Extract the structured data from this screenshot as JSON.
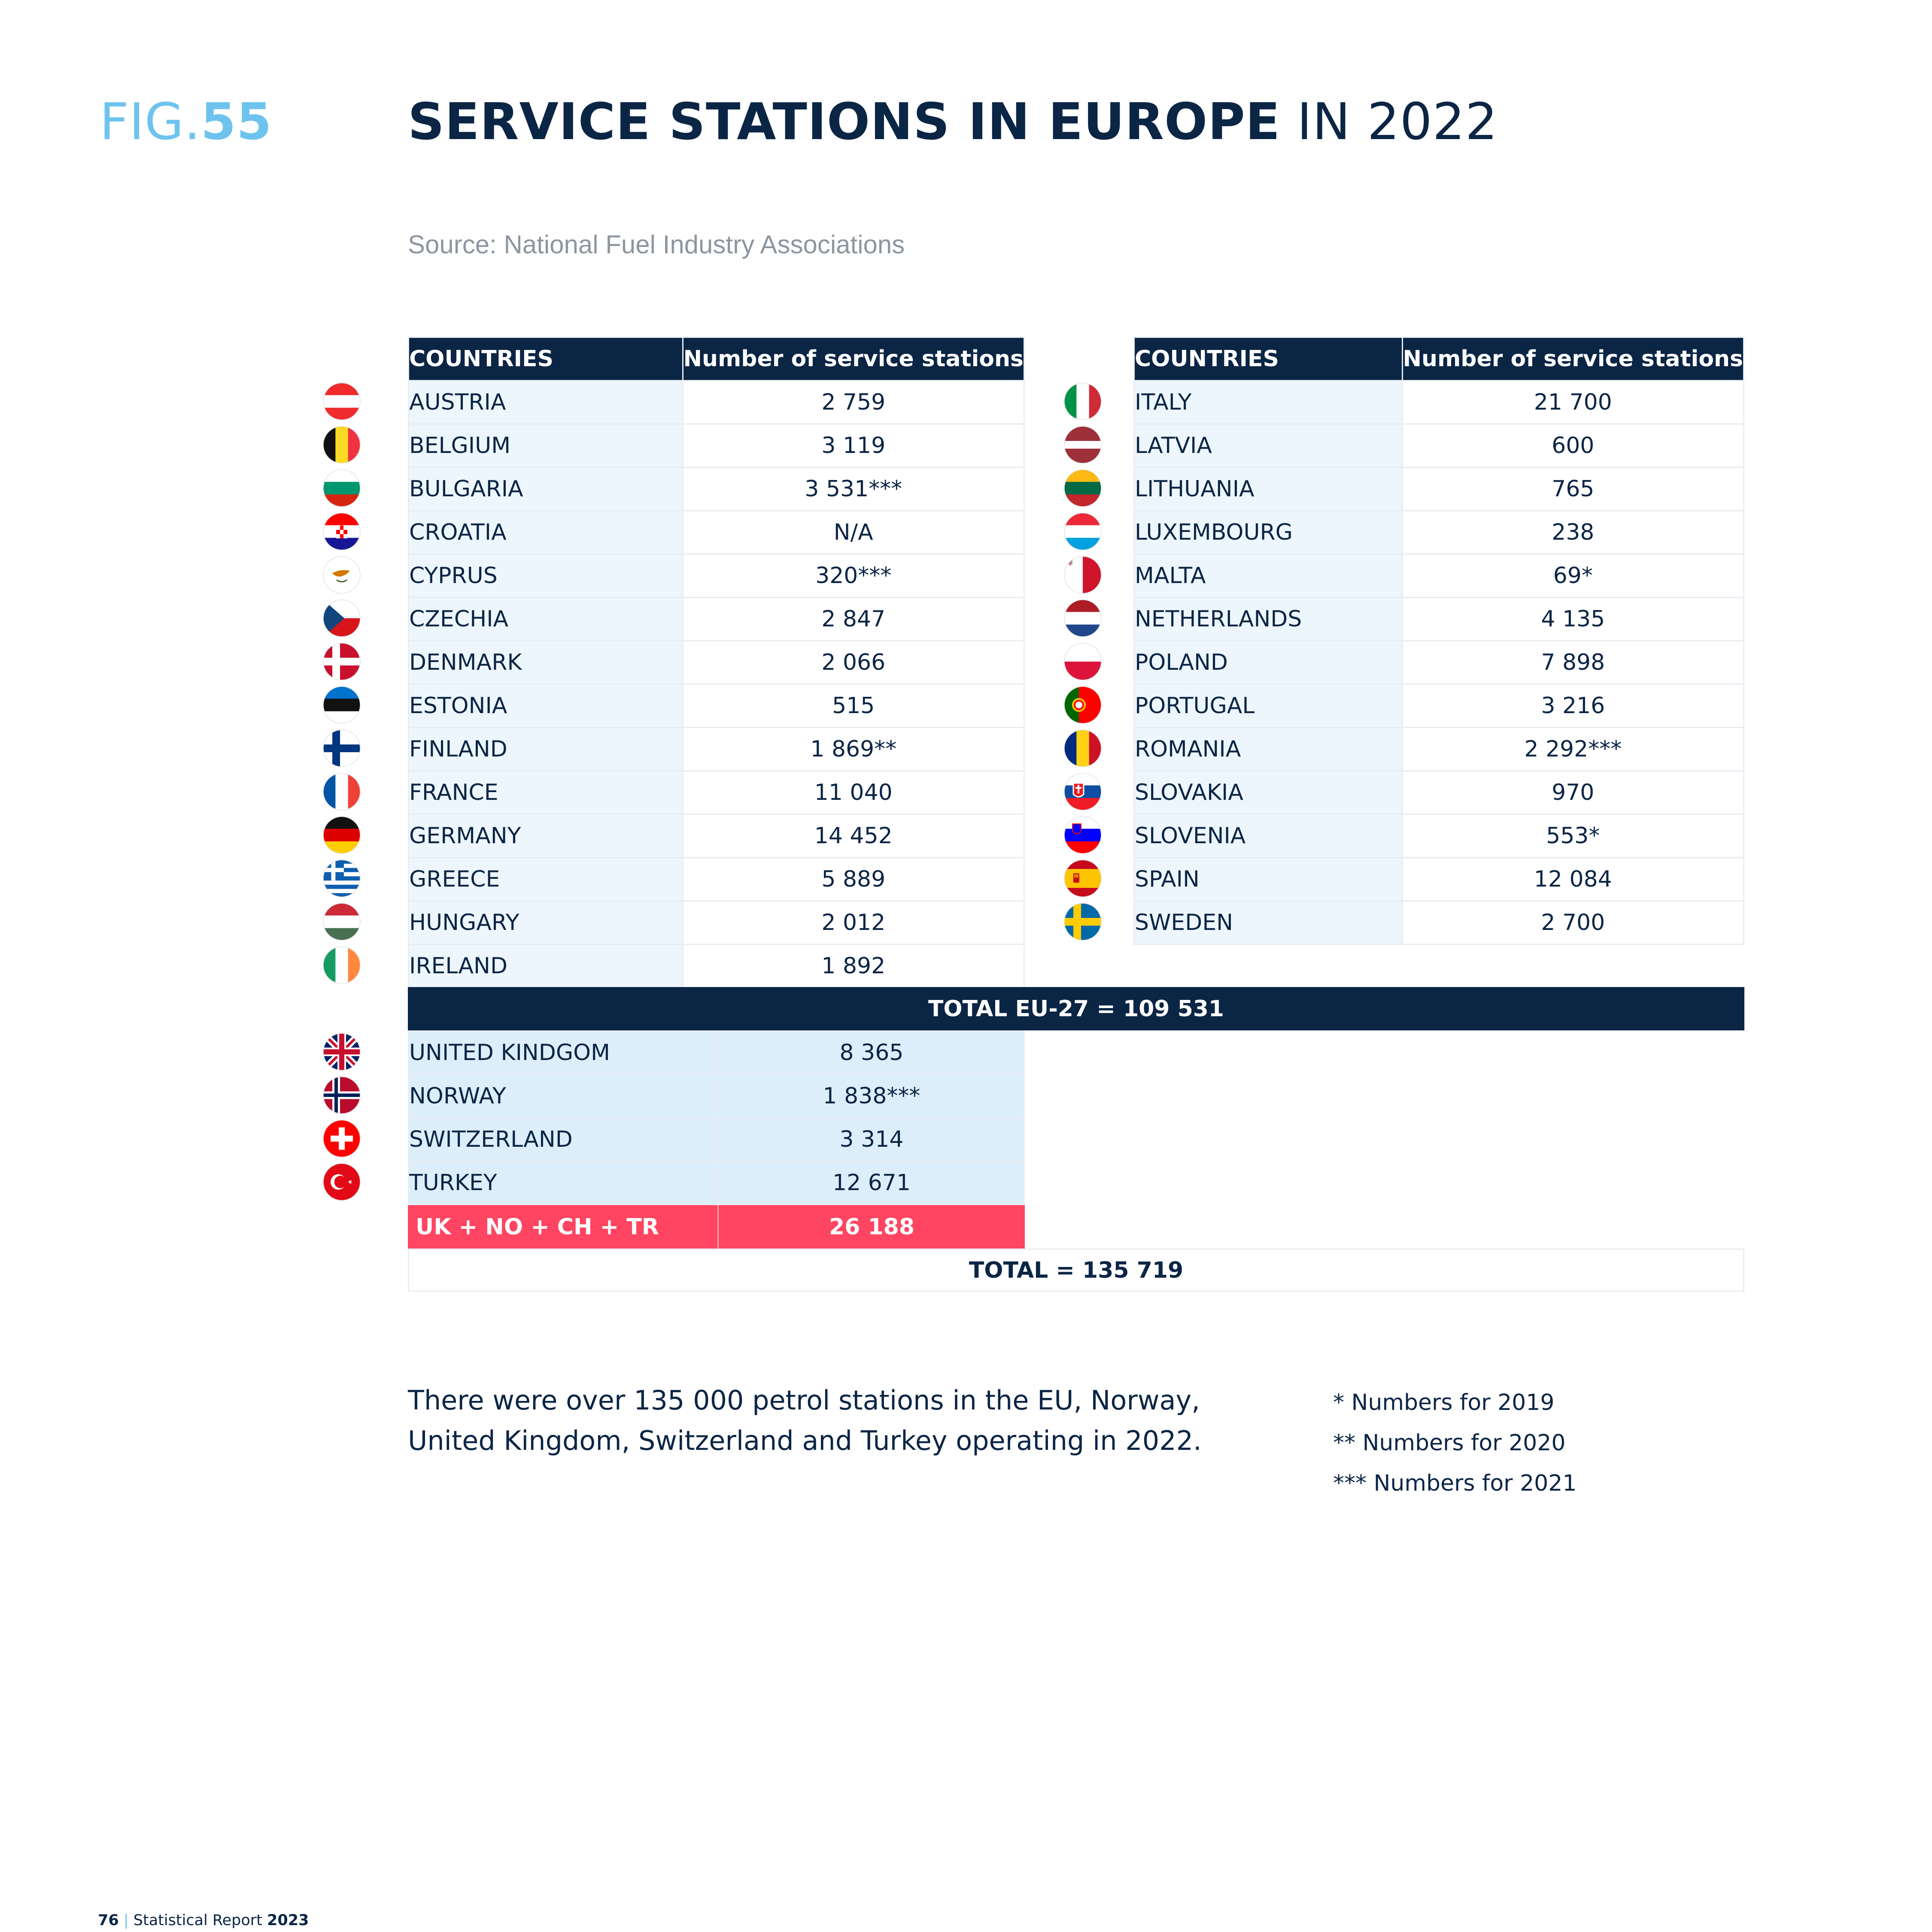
{
  "header": {
    "fig_prefix": "FIG.",
    "fig_number": "55",
    "title_bold": "SERVICE STATIONS IN EUROPE",
    "title_light": "IN 2022",
    "source": "Source: National Fuel Industry Associations"
  },
  "table_headers": {
    "country": "COUNTRIES",
    "stations": "Number of service stations"
  },
  "left_table": [
    {
      "country": "AUSTRIA",
      "value": "2 759",
      "flag": "flag-austria"
    },
    {
      "country": "BELGIUM",
      "value": "3 119",
      "flag": "flag-belgium"
    },
    {
      "country": "BULGARIA",
      "value": "3 531***",
      "flag": "flag-bulgaria"
    },
    {
      "country": "CROATIA",
      "value": "N/A",
      "flag": "flag-croatia"
    },
    {
      "country": "CYPRUS",
      "value": "320***",
      "flag": "flag-cyprus"
    },
    {
      "country": "CZECHIA",
      "value": "2 847",
      "flag": "flag-czechia"
    },
    {
      "country": "DENMARK",
      "value": "2 066",
      "flag": "flag-denmark"
    },
    {
      "country": "ESTONIA",
      "value": "515",
      "flag": "flag-estonia"
    },
    {
      "country": "FINLAND",
      "value": "1 869**",
      "flag": "flag-finland"
    },
    {
      "country": "FRANCE",
      "value": "11 040",
      "flag": "flag-france"
    },
    {
      "country": "GERMANY",
      "value": "14 452",
      "flag": "flag-germany"
    },
    {
      "country": "GREECE",
      "value": "5 889",
      "flag": "flag-greece"
    },
    {
      "country": "HUNGARY",
      "value": "2 012",
      "flag": "flag-hungary"
    },
    {
      "country": "IRELAND",
      "value": "1 892",
      "flag": "flag-ireland"
    }
  ],
  "right_table": [
    {
      "country": "ITALY",
      "value": "21 700",
      "flag": "flag-italy"
    },
    {
      "country": "LATVIA",
      "value": "600",
      "flag": "flag-latvia"
    },
    {
      "country": "LITHUANIA",
      "value": "765",
      "flag": "flag-lithuania"
    },
    {
      "country": "LUXEMBOURG",
      "value": "238",
      "flag": "flag-luxembourg"
    },
    {
      "country": "MALTA",
      "value": "69*",
      "flag": "flag-malta"
    },
    {
      "country": "NETHERLANDS",
      "value": "4 135",
      "flag": "flag-netherlands"
    },
    {
      "country": "POLAND",
      "value": "7 898",
      "flag": "flag-poland"
    },
    {
      "country": "PORTUGAL",
      "value": "3 216",
      "flag": "flag-portugal"
    },
    {
      "country": "ROMANIA",
      "value": "2 292***",
      "flag": "flag-romania"
    },
    {
      "country": "SLOVAKIA",
      "value": "970",
      "flag": "flag-slovakia"
    },
    {
      "country": "SLOVENIA",
      "value": "553*",
      "flag": "flag-slovenia"
    },
    {
      "country": "SPAIN",
      "value": "12 084",
      "flag": "flag-spain"
    },
    {
      "country": "SWEDEN",
      "value": "2 700",
      "flag": "flag-sweden"
    }
  ],
  "total_eu": "TOTAL EU-27 = 109 531",
  "non_eu_table": [
    {
      "country": "UNITED KINDGOM",
      "value": "8 365",
      "flag": "flag-united-kingdom"
    },
    {
      "country": "NORWAY",
      "value": "1 838***",
      "flag": "flag-norway"
    },
    {
      "country": "SWITZERLAND",
      "value": "3 314",
      "flag": "flag-switzerland"
    },
    {
      "country": "TURKEY",
      "value": "12 671",
      "flag": "flag-turkey"
    }
  ],
  "non_eu_subtotal": {
    "label": "UK + NO + CH + TR",
    "value": "26 188"
  },
  "grand_total": "TOTAL = 135 719",
  "description": "There were over 135 000 petrol stations in the EU, Norway, United Kingdom, Switzerland and Turkey operating in 2022.",
  "footnotes": [
    "* Numbers for 2019",
    "** Numbers for 2020",
    "*** Numbers for 2021"
  ],
  "footer": {
    "page": "76",
    "separator": "|",
    "report": "Statistical Report",
    "year": "2023"
  },
  "colors": {
    "navy": "#0b2545",
    "light_blue": "#6ec3ee",
    "subtotal_red": "#ff4561",
    "row_tint": "#eef6fd",
    "non_eu_tint": "#ddeefb"
  }
}
